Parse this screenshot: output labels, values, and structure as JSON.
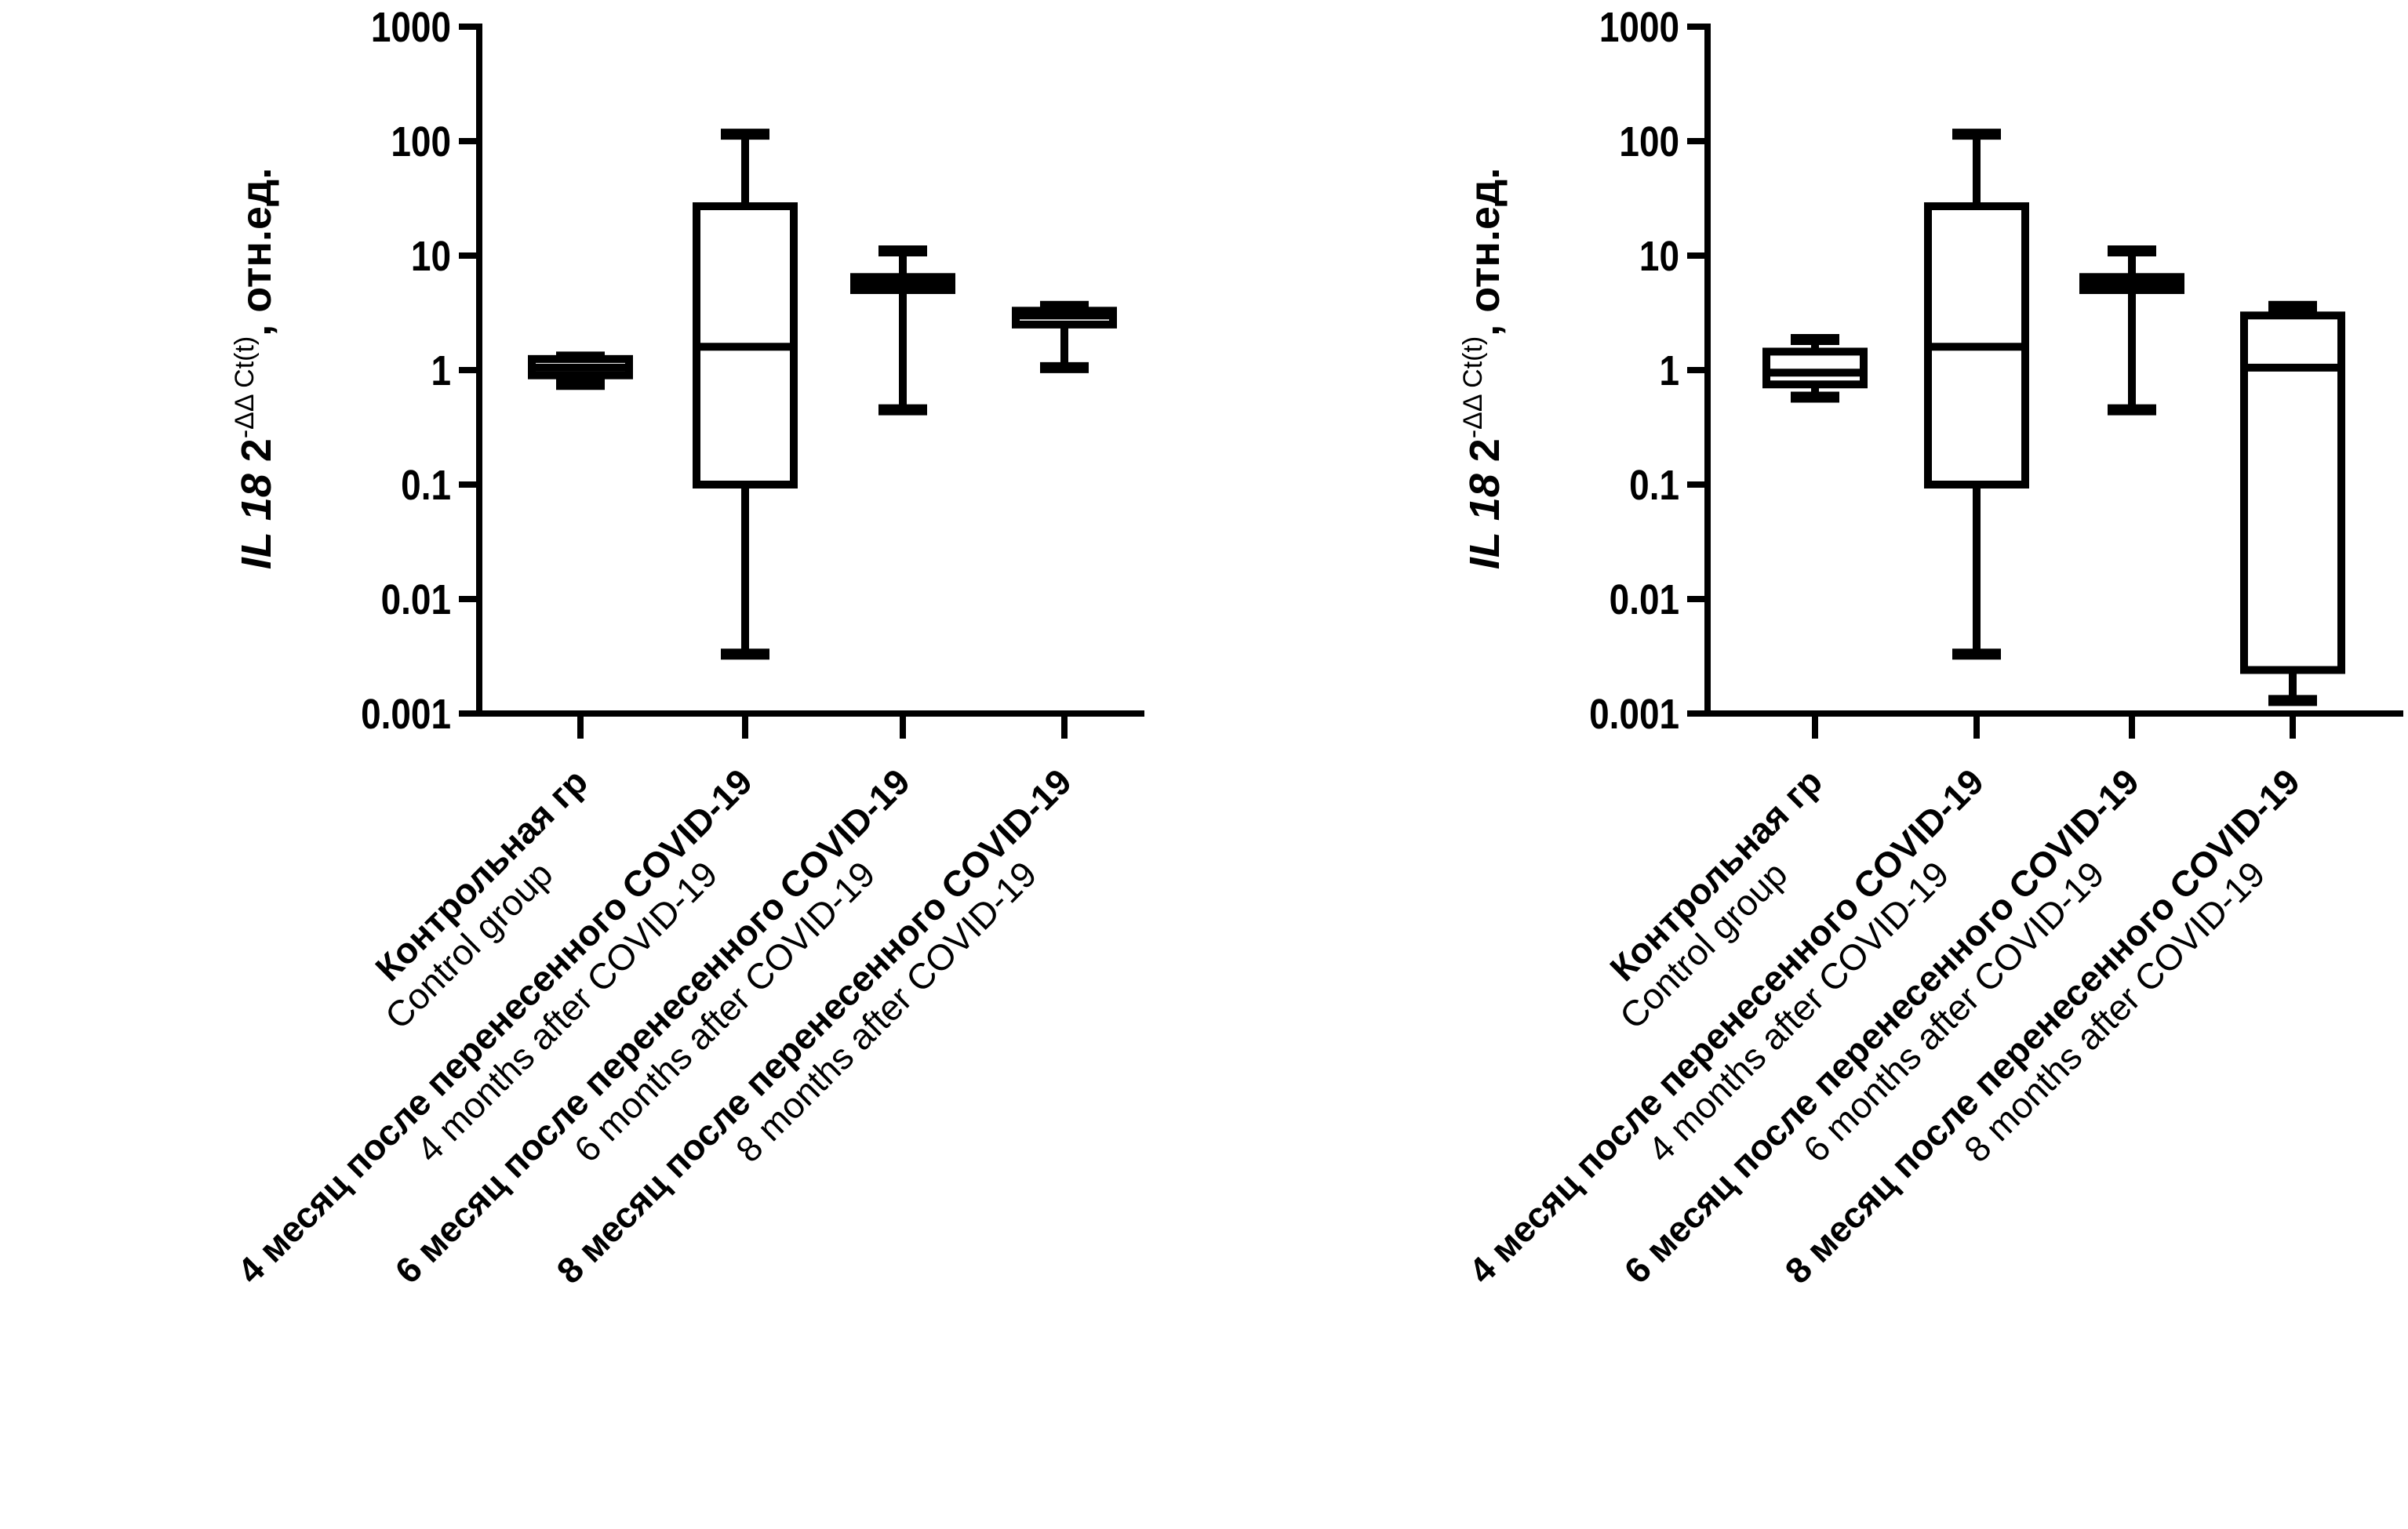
{
  "chart_data": [
    {
      "type": "box",
      "ylabel": {
        "gene": "IL 18",
        "base": " 2",
        "exponent": "-ΔΔ Ct(t)",
        "units": ", отн.ед."
      },
      "yscale": "log",
      "ylim": [
        0.001,
        1000
      ],
      "yticks": [
        "1000",
        "100",
        "10",
        "1",
        "0.1",
        "0.01",
        "0.001"
      ],
      "categories": [
        {
          "ru": "Контрольная гр",
          "en": "Control group"
        },
        {
          "ru": "4 месяц после перенесенного COVID-19",
          "en": "4 months after COVID-19"
        },
        {
          "ru": "6 месяц после перенесенного COVID-19",
          "en": "6 months after COVID-19"
        },
        {
          "ru": "8 месяц после перенесенного COVID-19",
          "en": "8 months after COVID-19"
        }
      ],
      "boxes": [
        {
          "min": 0.75,
          "q1": 0.9,
          "median": 1.05,
          "q3": 1.25,
          "max": 1.3
        },
        {
          "min": 0.0033,
          "q1": 0.1,
          "median": 1.6,
          "q3": 27,
          "max": 115
        },
        {
          "min": 0.45,
          "q1": 5.0,
          "median": 5.8,
          "q3": 6.5,
          "max": 11
        },
        {
          "min": 1.05,
          "q1": 2.5,
          "median": 3.0,
          "q3": 3.3,
          "max": 3.6
        }
      ]
    },
    {
      "type": "box",
      "ylabel": {
        "gene": "IL 18",
        "base": " 2",
        "exponent": "-ΔΔ Ct(t)",
        "units": ", отн.ед."
      },
      "yscale": "log",
      "ylim": [
        0.001,
        1000
      ],
      "yticks": [
        "1000",
        "100",
        "10",
        "1",
        "0.1",
        "0.01",
        "0.001"
      ],
      "categories": [
        {
          "ru": "Контрольная гр",
          "en": "Control group"
        },
        {
          "ru": "4 месяц после перенесенного COVID-19",
          "en": "4 months after COVID-19"
        },
        {
          "ru": "6 месяц после перенесенного COVID-19",
          "en": "6 months after COVID-19"
        },
        {
          "ru": "8 месяц после перенесенного COVID-19",
          "en": "8 months after COVID-19"
        }
      ],
      "boxes": [
        {
          "min": 0.58,
          "q1": 0.75,
          "median": 0.95,
          "q3": 1.45,
          "max": 1.85
        },
        {
          "min": 0.0033,
          "q1": 0.1,
          "median": 1.6,
          "q3": 27,
          "max": 115
        },
        {
          "min": 0.45,
          "q1": 5.0,
          "median": 5.8,
          "q3": 6.5,
          "max": 11
        },
        {
          "min": 0.0013,
          "q1": 0.0024,
          "median": 1.05,
          "q3": 3.0,
          "max": 3.6
        }
      ]
    }
  ]
}
